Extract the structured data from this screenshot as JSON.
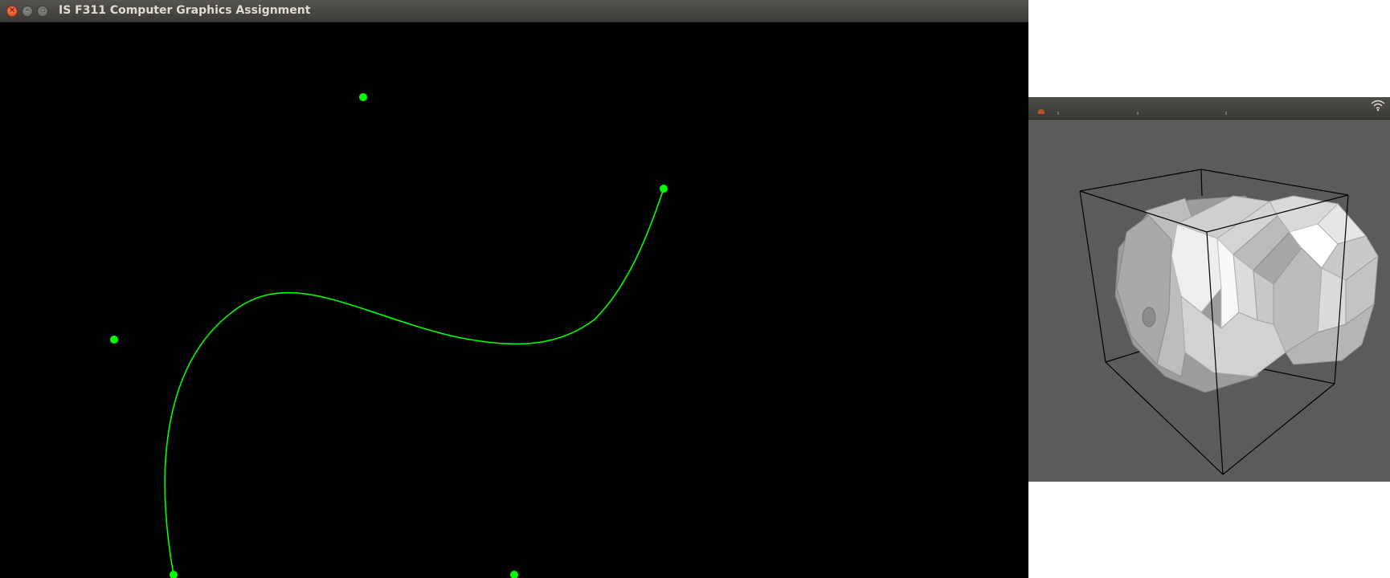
{
  "main_window": {
    "title": "IS F311 Computer Graphics Assignment",
    "background": "#000000",
    "curve": {
      "color": "#00ff00",
      "control_point_color": "#00ff00",
      "control_point_count": 5
    }
  },
  "viewer_window": {
    "background": "#5b5b5b",
    "bounding_box_color": "#000000",
    "model_color": "#d9d9d9"
  },
  "icons": {
    "close": "close-icon",
    "minimize": "minimize-icon",
    "maximize": "maximize-icon",
    "wifi": "wifi-icon"
  }
}
